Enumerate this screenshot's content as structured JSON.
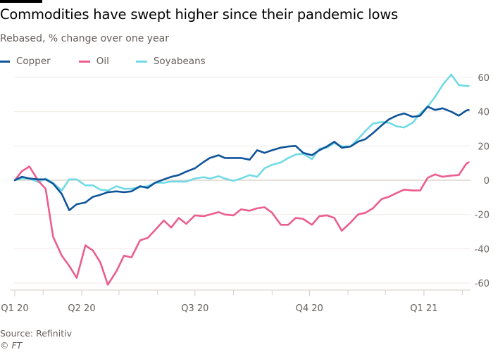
{
  "header": {
    "title": "Commodities have swept higher since their pandemic lows",
    "subtitle": "Rebased, % change over one year"
  },
  "footer": {
    "source": "Source: Refinitiv",
    "copyright": "© FT"
  },
  "chart_data": {
    "type": "line",
    "title": "Commodities have swept higher since their pandemic lows",
    "subtitle": "Rebased, % change over one year",
    "xlabel": "",
    "ylabel": "",
    "ylim": [
      -65,
      65
    ],
    "y_axis_side": "right",
    "yticks": [
      60,
      40,
      20,
      0,
      -20,
      -40,
      -60
    ],
    "xticks": [
      {
        "date": "2020-02-07",
        "label": "Q1 20"
      },
      {
        "date": "2020-03-01",
        "label": ""
      },
      {
        "date": "2020-04-01",
        "label": "Q2 20"
      },
      {
        "date": "2020-05-01",
        "label": ""
      },
      {
        "date": "2020-06-01",
        "label": ""
      },
      {
        "date": "2020-07-01",
        "label": "Q3 20"
      },
      {
        "date": "2020-08-01",
        "label": ""
      },
      {
        "date": "2020-09-01",
        "label": ""
      },
      {
        "date": "2020-10-01",
        "label": "Q4 20"
      },
      {
        "date": "2020-11-01",
        "label": ""
      },
      {
        "date": "2020-12-01",
        "label": ""
      },
      {
        "date": "2021-01-01",
        "label": "Q1 21"
      },
      {
        "date": "2021-02-01",
        "label": ""
      }
    ],
    "grid": true,
    "legend": "top-left",
    "x": [
      "2020-02-07",
      "2020-02-13",
      "2020-02-19",
      "2020-02-26",
      "2020-03-03",
      "2020-03-09",
      "2020-03-16",
      "2020-03-22",
      "2020-03-28",
      "2020-04-04",
      "2020-04-10",
      "2020-04-16",
      "2020-04-22",
      "2020-04-29",
      "2020-05-05",
      "2020-05-11",
      "2020-05-18",
      "2020-05-24",
      "2020-05-30",
      "2020-06-06",
      "2020-06-12",
      "2020-06-18",
      "2020-06-24",
      "2020-07-01",
      "2020-07-08",
      "2020-07-13",
      "2020-07-20",
      "2020-07-25",
      "2020-08-01",
      "2020-08-07",
      "2020-08-14",
      "2020-08-20",
      "2020-08-26",
      "2020-09-01",
      "2020-09-08",
      "2020-09-14",
      "2020-09-20",
      "2020-09-26",
      "2020-10-03",
      "2020-10-09",
      "2020-10-15",
      "2020-10-21",
      "2020-10-27",
      "2020-11-03",
      "2020-11-09",
      "2020-11-15",
      "2020-11-21",
      "2020-11-28",
      "2020-12-04",
      "2020-12-10",
      "2020-12-16",
      "2020-12-23",
      "2020-12-29",
      "2021-01-04",
      "2021-01-10",
      "2021-01-16",
      "2021-01-23",
      "2021-01-29",
      "2021-02-04",
      "2021-02-06"
    ],
    "series": [
      {
        "name": "Copper",
        "color": "#0f5499",
        "values": [
          0,
          2,
          1,
          0.5,
          0.5,
          -2,
          -8,
          -17.5,
          -14,
          -13,
          -9.7,
          -8.5,
          -7,
          -6.5,
          -7,
          -6.5,
          -3.5,
          -4.5,
          -1.5,
          0.5,
          2,
          3,
          5,
          7,
          10.7,
          13,
          14.6,
          13,
          13,
          13,
          12,
          17.5,
          16,
          17.5,
          19,
          19.7,
          20,
          16,
          14.6,
          17.5,
          19.7,
          22.5,
          19,
          19.7,
          22.5,
          24,
          27.5,
          32,
          35.6,
          37.7,
          39,
          37,
          37.7,
          43,
          41,
          42,
          40,
          37.7,
          40.7,
          41
        ]
      },
      {
        "name": "Oil",
        "color": "#eb5e8d",
        "values": [
          0,
          5.3,
          8,
          -0.3,
          -5,
          -33,
          -44,
          -50,
          -57,
          -38,
          -41,
          -48,
          -61,
          -53,
          -44,
          -45,
          -35,
          -33.7,
          -29,
          -23.5,
          -27.6,
          -22,
          -25.5,
          -20.5,
          -21,
          -20,
          -18.6,
          -20,
          -20.5,
          -17,
          -17.8,
          -16.4,
          -15.8,
          -19,
          -26,
          -26,
          -22,
          -22.6,
          -26,
          -21,
          -20.5,
          -22,
          -29.5,
          -24.7,
          -20,
          -19,
          -16.4,
          -11,
          -9.6,
          -7.5,
          -5.5,
          -6,
          -6,
          1.4,
          3.4,
          2,
          2.7,
          3,
          9.6,
          10.5
        ]
      },
      {
        "name": "Soyabeans",
        "color": "#70dbe6",
        "values": [
          0,
          1,
          1,
          -1,
          1,
          -1.6,
          -6,
          0.5,
          0.5,
          -3,
          -3,
          -5.5,
          -6,
          -3.5,
          -5,
          -5,
          -4,
          -3.5,
          -1.5,
          -1.5,
          -0.8,
          -0.8,
          -0.8,
          1,
          1.8,
          1,
          2.4,
          1,
          -0.3,
          1,
          3,
          2,
          7,
          9,
          10.4,
          13,
          15,
          15.5,
          12.3,
          18.4,
          19,
          21.7,
          19.7,
          19.7,
          24,
          28.8,
          33,
          34,
          33.6,
          31.5,
          30.8,
          33.6,
          39,
          43,
          48.7,
          55.6,
          61.7,
          55.6,
          55,
          55
        ]
      }
    ]
  }
}
